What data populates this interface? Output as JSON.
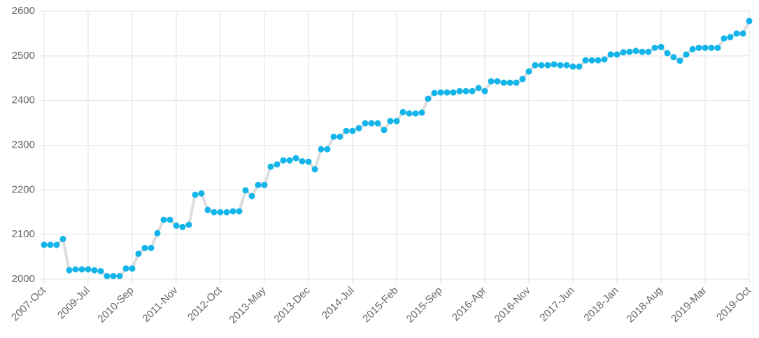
{
  "chart_data": {
    "type": "line",
    "categories": [
      "2007-Oct",
      null,
      null,
      null,
      null,
      null,
      null,
      "2009-Jul",
      null,
      null,
      null,
      null,
      null,
      null,
      "2010-Sep",
      null,
      null,
      null,
      null,
      null,
      null,
      "2011-Nov",
      null,
      null,
      null,
      null,
      null,
      null,
      "2012-Oct",
      null,
      null,
      null,
      null,
      null,
      null,
      "2013-May",
      null,
      null,
      null,
      null,
      null,
      null,
      "2013-Dec",
      null,
      null,
      null,
      null,
      null,
      null,
      "2014-Jul",
      null,
      null,
      null,
      null,
      null,
      null,
      "2015-Feb",
      null,
      null,
      null,
      null,
      null,
      null,
      "2015-Sep",
      null,
      null,
      null,
      null,
      null,
      null,
      "2016-Apr",
      null,
      null,
      null,
      null,
      null,
      null,
      "2016-Nov",
      null,
      null,
      null,
      null,
      null,
      null,
      "2017-Jun",
      null,
      null,
      null,
      null,
      null,
      null,
      "2018-Jan",
      null,
      null,
      null,
      null,
      null,
      null,
      "2018-Aug",
      null,
      null,
      null,
      null,
      null,
      null,
      "2019-Mar",
      null,
      null,
      null,
      null,
      null,
      null,
      "2019-Oct"
    ],
    "series": [
      {
        "line_color": "#dddddd",
        "color": "#12b5ea",
        "values": [
          2077,
          2077,
          2077,
          2090,
          2020,
          2022,
          2022,
          2022,
          2020,
          2018,
          2007,
          2007,
          2007,
          2024,
          2024,
          2057,
          2070,
          2070,
          2103,
          2133,
          2133,
          2120,
          2117,
          2122,
          2189,
          2192,
          2155,
          2150,
          2150,
          2150,
          2152,
          2152,
          2199,
          2186,
          2211,
          2211,
          2252,
          2257,
          2266,
          2266,
          2271,
          2264,
          2263,
          2246,
          2291,
          2291,
          2319,
          2319,
          2332,
          2332,
          2338,
          2349,
          2349,
          2349,
          2334,
          2354,
          2354,
          2374,
          2371,
          2371,
          2373,
          2404,
          2417,
          2418,
          2418,
          2418,
          2421,
          2421,
          2421,
          2428,
          2421,
          2443,
          2443,
          2440,
          2440,
          2440,
          2448,
          2465,
          2479,
          2479,
          2479,
          2481,
          2479,
          2479,
          2476,
          2476,
          2490,
          2490,
          2490,
          2492,
          2503,
          2503,
          2508,
          2509,
          2511,
          2509,
          2509,
          2518,
          2520,
          2506,
          2497,
          2489,
          2503,
          2515,
          2518,
          2518,
          2518,
          2518,
          2539,
          2542,
          2550,
          2550,
          2578
        ]
      }
    ],
    "ylim": [
      2000,
      2600
    ],
    "yticks": [
      2000,
      2100,
      2200,
      2300,
      2400,
      2500,
      2600
    ],
    "grid": true
  }
}
